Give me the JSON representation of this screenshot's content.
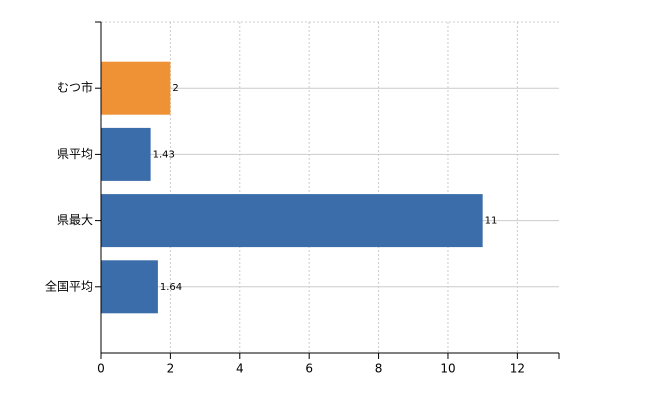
{
  "chart_data": {
    "type": "bar",
    "orientation": "horizontal",
    "categories": [
      "むつ市",
      "県平均",
      "県最大",
      "全国平均"
    ],
    "values": [
      2,
      1.43,
      11,
      1.64
    ],
    "colors": [
      "#ef9236",
      "#3c6dab",
      "#3c6dab",
      "#3c6dab"
    ],
    "xlim": [
      0,
      13.2
    ],
    "xticks": [
      0,
      2,
      4,
      6,
      8,
      10,
      12
    ],
    "grid": true
  }
}
